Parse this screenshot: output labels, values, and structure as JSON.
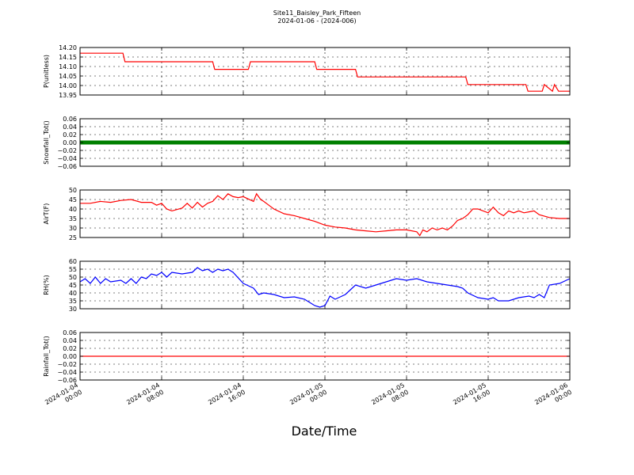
{
  "title": "Site11_Baisley_Park_Fifteen",
  "subtitle": "2024-01-06 - (2024-006)",
  "chart_data": {
    "type": "line",
    "xlabel": "Date/Time",
    "x_range": [
      "2024-01-04 00:00",
      "2024-01-06 00:00"
    ],
    "x_ticks": [
      "2024-01-04 00:00",
      "2024-01-04 08:00",
      "2024-01-04 16:00",
      "2024-01-05 00:00",
      "2024-01-05 08:00",
      "2024-01-05 16:00",
      "2024-01-06 00:00"
    ],
    "x_tick_labels": [
      [
        "2024-01-04",
        "00:00"
      ],
      [
        "2024-01-04",
        "08:00"
      ],
      [
        "2024-01-04",
        "16:00"
      ],
      [
        "2024-01-05",
        "00:00"
      ],
      [
        "2024-01-05",
        "08:00"
      ],
      [
        "2024-01-05",
        "16:00"
      ],
      [
        "2024-01-06",
        "00:00"
      ]
    ],
    "grid": true,
    "panels": [
      {
        "ylabel": "P(unitless)",
        "color": "#ff0000",
        "style": "line",
        "ylim": [
          13.95,
          14.2
        ],
        "yticks": [
          13.95,
          14.0,
          14.05,
          14.1,
          14.15,
          14.2
        ],
        "ytick_labels": [
          "13.95",
          "14.00",
          "14.05",
          "14.10",
          "14.15",
          "14.20"
        ],
        "series": [
          {
            "hours": [
              0,
              4.2,
              4.4,
              13,
              13.2,
              16.5,
              16.7,
              23,
              23.2,
              27,
              27.2,
              37.8,
              38,
              43.7,
              43.9,
              45.3,
              45.5,
              46.3,
              46.5,
              46.9,
              47.1,
              48
            ],
            "values": [
              14.17,
              14.17,
              14.125,
              14.125,
              14.085,
              14.085,
              14.125,
              14.125,
              14.085,
              14.085,
              14.045,
              14.045,
              14.005,
              14.005,
              13.97,
              13.97,
              14.005,
              13.97,
              14.005,
              13.97,
              13.97,
              13.97
            ]
          }
        ]
      },
      {
        "ylabel": "Snowfall_Tot()",
        "color": "#008000",
        "style": "markers",
        "ylim": [
          -0.06,
          0.06
        ],
        "yticks": [
          -0.06,
          -0.04,
          -0.02,
          0.0,
          0.02,
          0.04,
          0.06
        ],
        "ytick_labels": [
          "−0.06",
          "−0.04",
          "−0.02",
          "0.00",
          "0.02",
          "0.04",
          "0.06"
        ],
        "series": [
          {
            "hours": [
              0,
              48
            ],
            "values": [
              0,
              0
            ]
          }
        ]
      },
      {
        "ylabel": "AirT(F)",
        "color": "#ff0000",
        "style": "line",
        "ylim": [
          25,
          50
        ],
        "yticks": [
          25,
          30,
          35,
          40,
          45,
          50
        ],
        "ytick_labels": [
          "25",
          "30",
          "35",
          "40",
          "45",
          "50"
        ],
        "series": [
          {
            "hours": [
              0,
              1,
              2,
              3,
              4,
              5,
              6,
              7,
              7.5,
              8,
              8.5,
              9,
              10,
              10.5,
              11,
              11.5,
              12,
              12.5,
              13,
              13.5,
              14,
              14.5,
              15,
              15.5,
              16,
              17,
              17.3,
              17.7,
              18,
              18.5,
              19,
              20,
              21,
              22,
              23,
              24,
              25,
              26,
              27,
              28,
              29,
              30,
              31,
              32,
              33,
              33.3,
              33.6,
              34,
              34.5,
              35,
              35.5,
              36,
              36.5,
              37,
              37.5,
              38,
              38.5,
              39,
              40,
              40.5,
              41,
              41.5,
              42,
              42.5,
              43,
              43.5,
              44,
              44.5,
              45,
              46,
              47,
              48
            ],
            "values": [
              43,
              43,
              44,
              43.5,
              44.5,
              45,
              43.5,
              43.5,
              42,
              43,
              40,
              39,
              40.5,
              43,
              40.5,
              43.5,
              41,
              43,
              44,
              47,
              45,
              48,
              46.5,
              46,
              46.5,
              44,
              48,
              45,
              44,
              42,
              40,
              37.5,
              36.5,
              35,
              33.5,
              31.5,
              30.5,
              30,
              29,
              28.5,
              28,
              28.5,
              29,
              29,
              28,
              26,
              29,
              28,
              30,
              29,
              30,
              29,
              31,
              34,
              35,
              37,
              40,
              40,
              38,
              41,
              38,
              36.5,
              39,
              38,
              39,
              38,
              38.5,
              39,
              37,
              35.5,
              35,
              35
            ]
          }
        ]
      },
      {
        "ylabel": "RH(%)",
        "color": "#0000ff",
        "style": "line",
        "ylim": [
          30,
          60
        ],
        "yticks": [
          30,
          35,
          40,
          45,
          50,
          55,
          60
        ],
        "ytick_labels": [
          "30",
          "35",
          "40",
          "45",
          "50",
          "55",
          "60"
        ],
        "series": [
          {
            "hours": [
              0,
              0.5,
              1,
              1.5,
              2,
              2.5,
              3,
              4,
              4.5,
              5,
              5.5,
              6,
              6.5,
              7,
              7.5,
              8,
              8.5,
              9,
              10,
              11,
              11.5,
              12,
              12.5,
              13,
              13.5,
              14,
              14.5,
              15,
              16,
              17,
              17.5,
              18,
              19,
              20,
              21,
              22,
              22.5,
              23,
              23.5,
              24,
              24.5,
              25,
              26,
              26.5,
              27,
              28,
              29,
              30,
              30.5,
              31,
              32,
              33,
              34,
              35,
              36,
              37,
              37.5,
              38,
              39,
              40,
              40.5,
              41,
              42,
              43,
              44,
              44.5,
              45,
              45.5,
              46,
              47,
              48
            ],
            "values": [
              47,
              49,
              46,
              50,
              46,
              49,
              47,
              48,
              46,
              49,
              46,
              50,
              49,
              52,
              51,
              53,
              50,
              53,
              52,
              53,
              56,
              54,
              55,
              53,
              55,
              54,
              55,
              53,
              46,
              43,
              39,
              40,
              39,
              37,
              37.5,
              36,
              34,
              32,
              31,
              32,
              38,
              36,
              39,
              42,
              45,
              43,
              45,
              47,
              48,
              49,
              48,
              49,
              47,
              46,
              45,
              44,
              43,
              40,
              37,
              36,
              37,
              35,
              35,
              37,
              38,
              37,
              39,
              37,
              45,
              46,
              49
            ]
          }
        ]
      },
      {
        "ylabel": "Rainfall_Tot()",
        "color": "#ff0000",
        "style": "line",
        "ylim": [
          -0.06,
          0.06
        ],
        "yticks": [
          -0.06,
          -0.04,
          -0.02,
          0.0,
          0.02,
          0.04,
          0.06
        ],
        "ytick_labels": [
          "−0.06",
          "−0.04",
          "−0.02",
          "0.00",
          "0.02",
          "0.04",
          "0.06"
        ],
        "series": [
          {
            "hours": [
              0,
              48
            ],
            "values": [
              0,
              0
            ]
          }
        ]
      }
    ]
  }
}
